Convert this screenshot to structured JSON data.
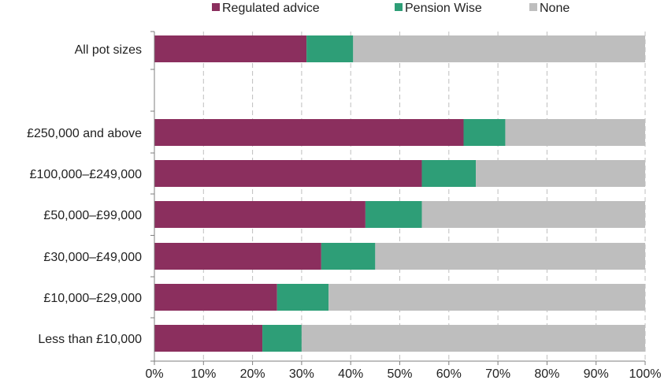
{
  "chart_data": {
    "type": "bar",
    "orientation": "horizontal",
    "stacked": true,
    "categories": [
      "All pot sizes",
      "",
      "£250,000 and above",
      "£100,000–£249,000",
      "£50,000–£99,000",
      "£30,000–£49,000",
      "£10,000–£29,000",
      "Less than £10,000"
    ],
    "series": [
      {
        "name": "Regulated advice",
        "color": "#8B2F5E",
        "values": [
          31,
          null,
          63,
          54.5,
          43,
          34,
          25,
          22
        ]
      },
      {
        "name": "Pension Wise",
        "color": "#2E9E77",
        "values": [
          9.5,
          null,
          8.5,
          11,
          11.5,
          11,
          10.5,
          8
        ]
      },
      {
        "name": "None",
        "color": "#BEBEBE",
        "values": [
          59.5,
          null,
          28.5,
          34.5,
          45.5,
          55,
          64.5,
          70
        ]
      }
    ],
    "x_ticks": [
      "0%",
      "10%",
      "20%",
      "30%",
      "40%",
      "50%",
      "60%",
      "70%",
      "80%",
      "90%",
      "100%"
    ],
    "xlim": [
      0,
      100
    ],
    "title": "",
    "xlabel": "",
    "ylabel": "",
    "grid": "vertical dashed",
    "legend": "top"
  }
}
